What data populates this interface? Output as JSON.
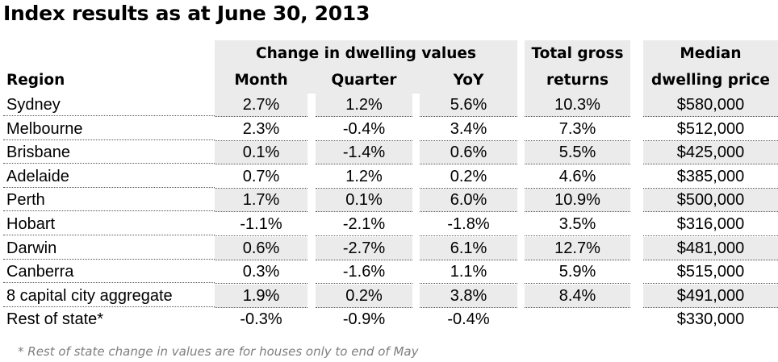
{
  "title": "Index results as at June 30, 2013",
  "headers": {
    "group": "Change in dwelling values",
    "region": "Region",
    "month": "Month",
    "quarter": "Quarter",
    "yoy": "YoY",
    "tgr_line1": "Total gross",
    "tgr_line2": "returns",
    "median_line1": "Median",
    "median_line2": "dwelling price"
  },
  "rows": [
    {
      "region": "Sydney",
      "month": "2.7%",
      "quarter": "1.2%",
      "yoy": "5.6%",
      "tgr": "10.3%",
      "median": "$580,000"
    },
    {
      "region": "Melbourne",
      "month": "2.3%",
      "quarter": "-0.4%",
      "yoy": "3.4%",
      "tgr": "7.3%",
      "median": "$512,000"
    },
    {
      "region": "Brisbane",
      "month": "0.1%",
      "quarter": "-1.4%",
      "yoy": "0.6%",
      "tgr": "5.5%",
      "median": "$425,000"
    },
    {
      "region": "Adelaide",
      "month": "0.7%",
      "quarter": "1.2%",
      "yoy": "0.2%",
      "tgr": "4.6%",
      "median": "$385,000"
    },
    {
      "region": "Perth",
      "month": "1.7%",
      "quarter": "0.1%",
      "yoy": "6.0%",
      "tgr": "10.9%",
      "median": "$500,000"
    },
    {
      "region": "Hobart",
      "month": "-1.1%",
      "quarter": "-2.1%",
      "yoy": "-1.8%",
      "tgr": "3.5%",
      "median": "$316,000"
    },
    {
      "region": "Darwin",
      "month": "0.6%",
      "quarter": "-2.7%",
      "yoy": "6.1%",
      "tgr": "12.7%",
      "median": "$481,000"
    },
    {
      "region": "Canberra",
      "month": "0.3%",
      "quarter": "-1.6%",
      "yoy": "1.1%",
      "tgr": "5.9%",
      "median": "$515,000"
    },
    {
      "region": "8 capital city aggregate",
      "month": "1.9%",
      "quarter": "0.2%",
      "yoy": "3.8%",
      "tgr": "8.4%",
      "median": "$491,000"
    },
    {
      "region": "Rest of state*",
      "month": "-0.3%",
      "quarter": "-0.9%",
      "yoy": "-0.4%",
      "tgr": "",
      "median": "$330,000"
    }
  ],
  "footnote": "* Rest of state change in values are for houses only to end of May",
  "colors": {
    "header_fill": "#ebebeb",
    "footnote_text": "#7f7f7f"
  }
}
